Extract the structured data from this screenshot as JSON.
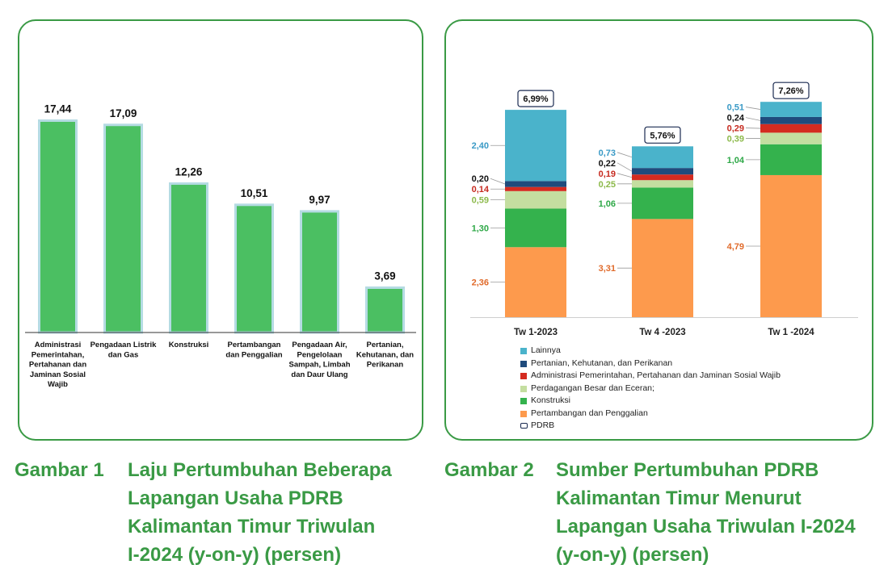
{
  "chart_data": [
    {
      "type": "bar",
      "categories": [
        "Administrasi Pemerintahan, Pertahanan dan Jaminan Sosial Wajib",
        "Pengadaan Listrik dan Gas",
        "Konstruksi",
        "Pertambangan dan Penggalian",
        "Pengadaan Air, Pengelolaan Sampah, Limbah dan Daur Ulang",
        "Pertanian, Kehutanan, dan Perikanan"
      ],
      "category_lines": [
        [
          "Administrasi",
          "Pemerintahan,",
          "Pertahanan dan",
          "Jaminan Sosial",
          "Wajib"
        ],
        [
          "Pengadaan Listrik",
          "dan Gas"
        ],
        [
          "Konstruksi"
        ],
        [
          "Pertambangan",
          "dan Penggalian"
        ],
        [
          "Pengadaan Air,",
          "Pengelolaan",
          "Sampah, Limbah",
          "dan Daur Ulang"
        ],
        [
          "Pertanian,",
          "Kehutanan, dan",
          "Perikanan"
        ]
      ],
      "values": [
        17.44,
        17.09,
        12.26,
        10.51,
        9.97,
        3.69
      ],
      "value_labels": [
        "17,44",
        "17,09",
        "12,26",
        "10,51",
        "9,97",
        "3,69"
      ],
      "ylim": [
        0,
        19
      ],
      "bar_color": "#4bbf62",
      "grid": false
    },
    {
      "type": "bar",
      "stacked": true,
      "categories": [
        "Tw 1-2023",
        "Tw 4 -2023",
        "Tw 1 -2024"
      ],
      "totals": [
        6.99,
        5.76,
        7.26
      ],
      "total_labels": [
        "6,99%",
        "5,76%",
        "7,26%"
      ],
      "series": [
        {
          "name": "Pertambangan dan Penggalian",
          "color": "#fd9a4d",
          "label_color": "#e06a2a",
          "values": [
            2.36,
            3.31,
            4.79
          ],
          "labels": [
            "2,36",
            "3,31",
            "4,79"
          ]
        },
        {
          "name": "Konstruksi",
          "color": "#34b24d",
          "label_color": "#2ea847",
          "values": [
            1.3,
            1.06,
            1.04
          ],
          "labels": [
            "1,30",
            "1,06",
            "1,04"
          ]
        },
        {
          "name": "Perdagangan Besar dan Eceran;",
          "color": "#c4dea0",
          "label_color": "#8cb94a",
          "values": [
            0.59,
            0.25,
            0.39
          ],
          "labels": [
            "0,59",
            "0,25",
            "0,39"
          ]
        },
        {
          "name": "Administrasi Pemerintahan, Pertahanan dan Jaminan Sosial Wajib",
          "color": "#d42b20",
          "label_color": "#c62a1f",
          "values": [
            0.14,
            0.19,
            0.29
          ],
          "labels": [
            "0,14",
            "0,19",
            "0,29"
          ]
        },
        {
          "name": "Pertanian, Kehutanan, dan Perikanan",
          "color": "#1f4b7c",
          "label_color": "#111111",
          "values": [
            0.2,
            0.22,
            0.24
          ],
          "labels": [
            "0,20",
            "0,22",
            "0,24"
          ]
        },
        {
          "name": "Lainnya",
          "color": "#4ab3cb",
          "label_color": "#3a9ac6",
          "values": [
            2.4,
            0.73,
            0.51
          ],
          "labels": [
            "2,40",
            "0,73",
            "0,51"
          ]
        }
      ],
      "legend": [
        {
          "label": "Lainnya",
          "color": "#4ab3cb"
        },
        {
          "label": "Pertanian, Kehutanan, dan Perikanan",
          "color": "#1f4b7c"
        },
        {
          "label": "Administrasi Pemerintahan, Pertahanan dan Jaminan Sosial Wajib",
          "color": "#d42b20"
        },
        {
          "label": "Perdagangan Besar dan Eceran;",
          "color": "#c4dea0"
        },
        {
          "label": "Konstruksi",
          "color": "#34b24d"
        },
        {
          "label": "Pertambangan dan Penggalian",
          "color": "#fd9a4d"
        },
        {
          "label": "PDRB",
          "color": "outline"
        }
      ],
      "legend_position": "bottom-left",
      "grid": false
    }
  ],
  "captions": [
    {
      "number": "Gambar 1",
      "lines": [
        "Laju Pertumbuhan Beberapa",
        "Lapangan Usaha PDRB",
        "Kalimantan Timur Triwulan",
        "I-2024 (y-on-y) (persen)"
      ]
    },
    {
      "number": "Gambar 2",
      "lines": [
        "Sumber Pertumbuhan PDRB",
        "Kalimantan Timur Menurut",
        "Lapangan Usaha Triwulan I-2024",
        "(y-on-y) (persen)"
      ]
    }
  ],
  "colors": {
    "frame": "#3a9a45",
    "caption": "#3a9a45"
  }
}
